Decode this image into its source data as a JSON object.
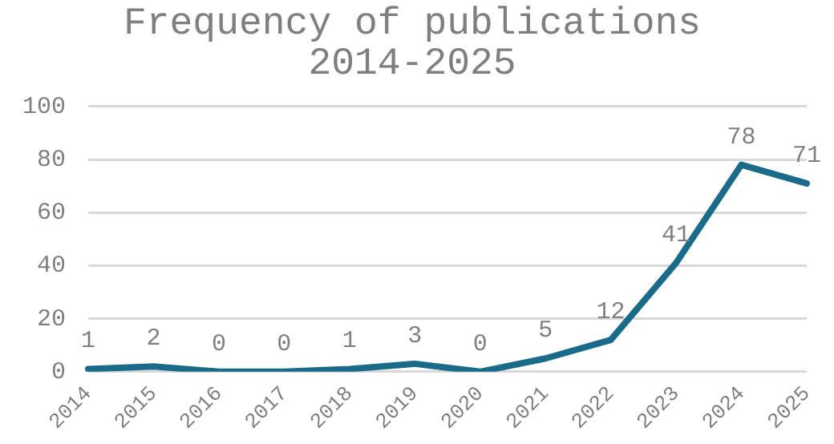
{
  "chart_data": {
    "type": "line",
    "title": [
      "Frequency of publications",
      "2014-2025"
    ],
    "categories": [
      "2014",
      "2015",
      "2016",
      "2017",
      "2018",
      "2019",
      "2020",
      "2021",
      "2022",
      "2023",
      "2024",
      "2025"
    ],
    "values": [
      1,
      2,
      0,
      0,
      1,
      3,
      0,
      5,
      12,
      41,
      78,
      71
    ],
    "color": "#1a6b8a",
    "ylim": [
      0,
      100
    ],
    "yticks": [
      0,
      20,
      40,
      60,
      80,
      100
    ],
    "grid": "y",
    "data_labels": true,
    "marker": "none",
    "line_style": "solid",
    "legend": false
  }
}
